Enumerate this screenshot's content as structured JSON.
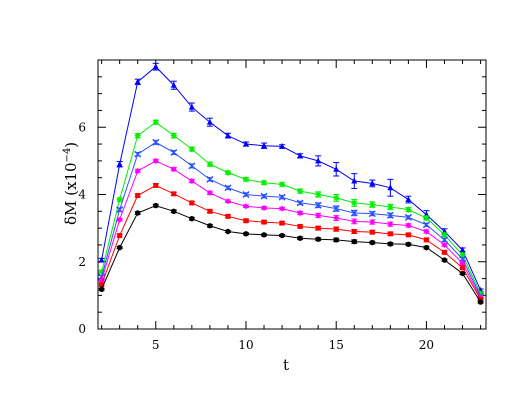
{
  "chart_data": {
    "type": "line",
    "xlabel": "t",
    "ylabel": "δM (x10",
    "ylabel_exponent": "−4",
    "ylabel_close": ")",
    "xlim": [
      1.8,
      23.3
    ],
    "ylim": [
      0,
      8.0
    ],
    "xticks": [
      5,
      10,
      15,
      20
    ],
    "yticks": [
      0,
      2,
      4,
      6
    ],
    "xtick_labels": [
      "5",
      "10",
      "15",
      "20"
    ],
    "ytick_labels": [
      "0",
      "2",
      "4",
      "6"
    ],
    "grid": false,
    "x": [
      2,
      3,
      4,
      5,
      6,
      7,
      8,
      9,
      10,
      11,
      12,
      13,
      14,
      15,
      16,
      17,
      18,
      19,
      20,
      21,
      22,
      23
    ],
    "series": [
      {
        "color": "#0000ff",
        "marker": "triangle",
        "values": [
          2.05,
          4.9,
          7.35,
          7.8,
          7.25,
          6.6,
          6.15,
          5.75,
          5.5,
          5.45,
          5.43,
          5.15,
          5.0,
          4.75,
          4.4,
          4.33,
          4.2,
          3.85,
          3.4,
          2.9,
          2.35,
          1.15
        ],
        "errors": [
          0.05,
          0.08,
          0.08,
          0.1,
          0.12,
          0.12,
          0.12,
          0.07,
          0.06,
          0.08,
          0.05,
          0.06,
          0.15,
          0.2,
          0.22,
          0.1,
          0.25,
          0.1,
          0.12,
          0.08,
          0.06,
          0.04
        ]
      },
      {
        "color": "#00ee00",
        "marker": "star",
        "values": [
          1.7,
          3.85,
          5.75,
          6.15,
          5.75,
          5.35,
          4.9,
          4.65,
          4.45,
          4.35,
          4.3,
          4.1,
          4.0,
          3.9,
          3.75,
          3.7,
          3.63,
          3.55,
          3.3,
          2.8,
          2.2,
          1.05
        ],
        "errors": [
          0.04,
          0.05,
          0.06,
          0.06,
          0.07,
          0.06,
          0.06,
          0.05,
          0.05,
          0.05,
          0.05,
          0.06,
          0.08,
          0.1,
          0.1,
          0.08,
          0.08,
          0.06,
          0.06,
          0.05,
          0.05,
          0.03
        ]
      },
      {
        "color": "#2a52ff",
        "marker": "cross",
        "values": [
          1.55,
          3.55,
          5.2,
          5.55,
          5.25,
          4.85,
          4.45,
          4.2,
          4.0,
          3.95,
          3.92,
          3.75,
          3.68,
          3.58,
          3.45,
          3.43,
          3.38,
          3.32,
          3.1,
          2.65,
          2.08,
          0.98
        ],
        "errors": [
          0.04,
          0.05,
          0.05,
          0.06,
          0.06,
          0.06,
          0.05,
          0.05,
          0.05,
          0.05,
          0.05,
          0.05,
          0.07,
          0.08,
          0.08,
          0.06,
          0.07,
          0.05,
          0.05,
          0.05,
          0.04,
          0.03
        ]
      },
      {
        "color": "#ff00ff",
        "marker": "diamond",
        "values": [
          1.45,
          3.25,
          4.7,
          5.0,
          4.75,
          4.4,
          4.05,
          3.8,
          3.65,
          3.6,
          3.58,
          3.45,
          3.38,
          3.3,
          3.2,
          3.18,
          3.12,
          3.08,
          2.9,
          2.5,
          1.95,
          0.93
        ],
        "errors": [
          0.03,
          0.04,
          0.05,
          0.05,
          0.05,
          0.05,
          0.05,
          0.04,
          0.04,
          0.04,
          0.04,
          0.05,
          0.06,
          0.07,
          0.07,
          0.06,
          0.06,
          0.05,
          0.05,
          0.04,
          0.04,
          0.03
        ]
      },
      {
        "color": "#ff0000",
        "marker": "square",
        "values": [
          1.32,
          2.78,
          3.97,
          4.27,
          4.02,
          3.75,
          3.5,
          3.35,
          3.22,
          3.18,
          3.15,
          3.05,
          3.0,
          2.97,
          2.9,
          2.88,
          2.83,
          2.8,
          2.65,
          2.28,
          1.82,
          0.88
        ],
        "errors": [
          0.03,
          0.04,
          0.04,
          0.05,
          0.05,
          0.04,
          0.04,
          0.04,
          0.04,
          0.04,
          0.04,
          0.04,
          0.05,
          0.06,
          0.06,
          0.05,
          0.05,
          0.04,
          0.04,
          0.04,
          0.03,
          0.03
        ]
      },
      {
        "color": "#000000",
        "marker": "circle",
        "values": [
          1.18,
          2.42,
          3.45,
          3.67,
          3.5,
          3.28,
          3.07,
          2.9,
          2.83,
          2.8,
          2.78,
          2.7,
          2.67,
          2.65,
          2.6,
          2.57,
          2.53,
          2.52,
          2.42,
          2.05,
          1.65,
          0.8
        ],
        "errors": [
          0.03,
          0.03,
          0.04,
          0.04,
          0.04,
          0.04,
          0.04,
          0.03,
          0.03,
          0.03,
          0.03,
          0.04,
          0.04,
          0.05,
          0.05,
          0.04,
          0.04,
          0.04,
          0.04,
          0.03,
          0.03,
          0.03
        ]
      }
    ]
  }
}
